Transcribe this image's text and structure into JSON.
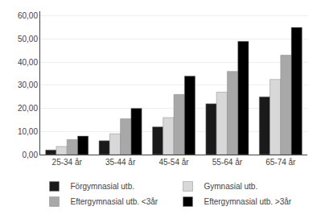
{
  "chart_data": {
    "type": "bar",
    "categories": [
      "25-34 år",
      "35-44 år",
      "45-54 år",
      "55-64 år",
      "65-74 år"
    ],
    "series": [
      {
        "name": "Förgymnasial utb.",
        "color": "#1a1a1a",
        "values": [
          2.0,
          6.0,
          12.0,
          22.0,
          25.0
        ]
      },
      {
        "name": "Gymnasial utb.",
        "color": "#d8d8d8",
        "values": [
          3.5,
          9.0,
          16.0,
          27.0,
          32.5
        ]
      },
      {
        "name": "Eftergymnasial utb. <3år",
        "color": "#a8a8a8",
        "values": [
          6.5,
          15.5,
          26.0,
          36.0,
          43.0
        ]
      },
      {
        "name": "Eftergymnasial utb. >3år",
        "color": "#000000",
        "values": [
          8.0,
          20.0,
          34.0,
          49.0,
          55.0
        ]
      }
    ],
    "ylim": [
      0,
      62
    ],
    "yticks": [
      {
        "value": 0,
        "label": "0,00"
      },
      {
        "value": 10,
        "label": "10,00"
      },
      {
        "value": 20,
        "label": "20,00"
      },
      {
        "value": 30,
        "label": "30,00"
      },
      {
        "value": 40,
        "label": "40,00"
      },
      {
        "value": 50,
        "label": "50,00"
      },
      {
        "value": 60,
        "label": "60,00"
      }
    ],
    "grid": true,
    "legend": "bottom"
  }
}
